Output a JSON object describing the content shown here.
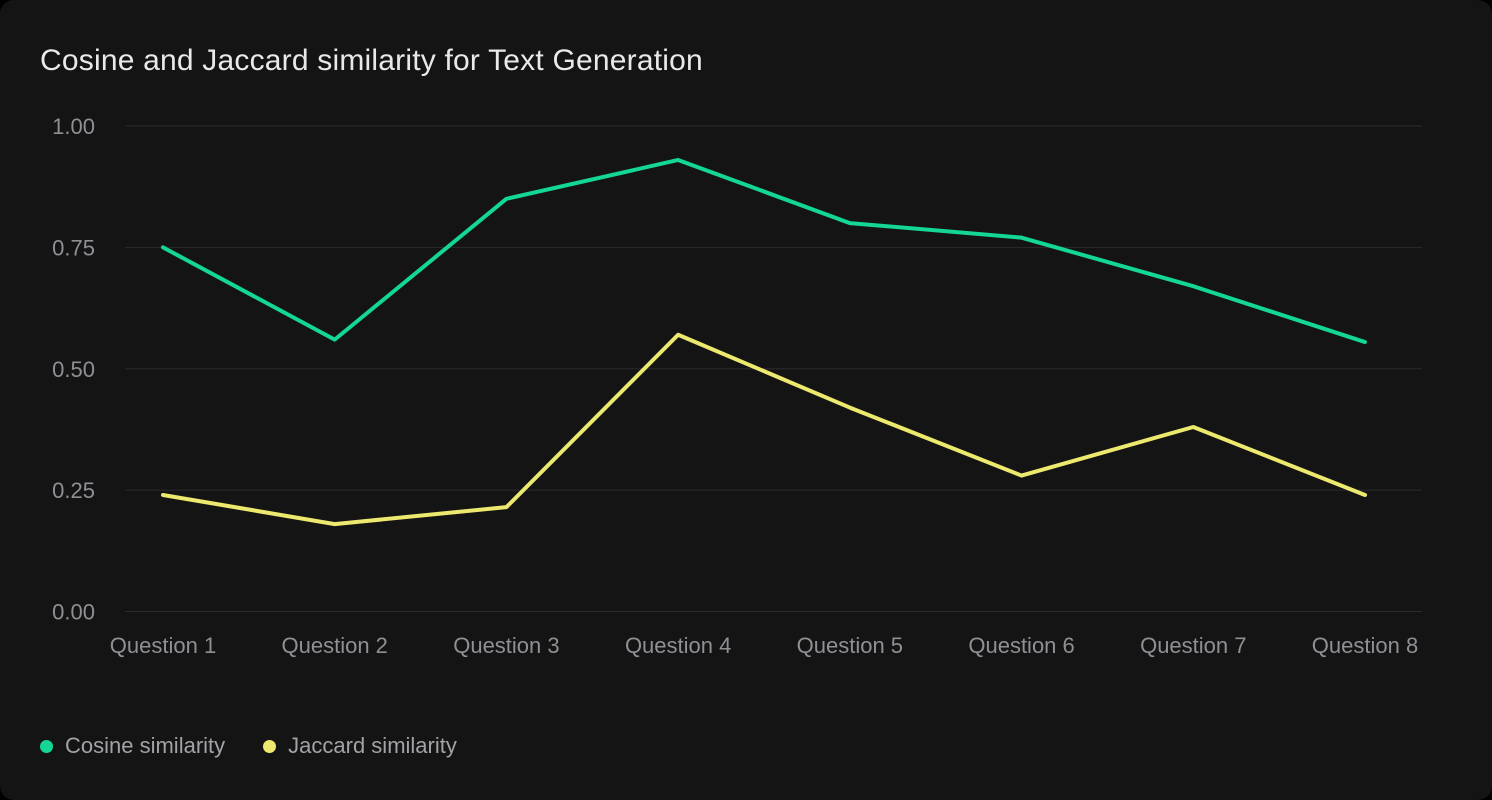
{
  "card": {
    "title": "Cosine and Jaccard similarity for Text Generation"
  },
  "colors": {
    "outside_background": "#000000",
    "card_background": "#141414",
    "grid": "#2b2b2b",
    "title_text": "#e9e9e9",
    "axis_label_text": "#8f8f96",
    "legend_label_text": "#a2a2a7",
    "cosine_line": "#13d793",
    "jaccard_line": "#ede96e"
  },
  "legend": {
    "items": [
      {
        "label": "Cosine similarity",
        "color": "#13d793"
      },
      {
        "label": "Jaccard similarity",
        "color": "#ede96e"
      }
    ]
  },
  "chart_data": {
    "type": "line",
    "title": "Cosine and Jaccard similarity for Text Generation",
    "categories": [
      "Question 1",
      "Question 2",
      "Question 3",
      "Question 4",
      "Question 5",
      "Question 6",
      "Question 7",
      "Question 8"
    ],
    "series": [
      {
        "name": "Cosine similarity",
        "color": "#13d793",
        "values": [
          0.75,
          0.56,
          0.85,
          0.93,
          0.8,
          0.77,
          0.67,
          0.555
        ]
      },
      {
        "name": "Jaccard similarity",
        "color": "#ede96e",
        "values": [
          0.24,
          0.18,
          0.215,
          0.57,
          0.42,
          0.28,
          0.38,
          0.24
        ]
      }
    ],
    "xlabel": "",
    "ylabel": "",
    "ylim": [
      0,
      1
    ],
    "yticks": [
      0,
      0.25,
      0.5,
      0.75,
      1
    ],
    "ytick_labels": [
      "0.00",
      "0.25",
      "0.50",
      "0.75",
      "1.00"
    ],
    "grid": true,
    "legend_position": "bottom-left"
  }
}
